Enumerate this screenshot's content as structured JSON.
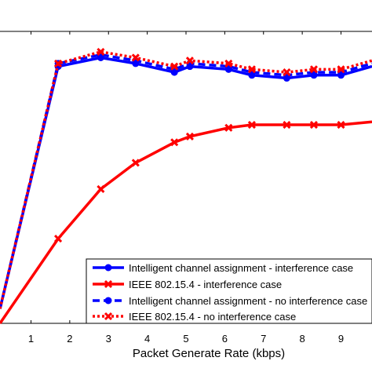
{
  "chart_data": {
    "type": "line",
    "xlabel": "Packet Generate Rate (kbps)",
    "ylabel": "",
    "title": "",
    "xlim": [
      0.2,
      9.8
    ],
    "ylim": [
      0,
      1
    ],
    "xticks": [
      1,
      2,
      3,
      4,
      5,
      6,
      7,
      8,
      9
    ],
    "grid": false,
    "legend_position": "lower-right",
    "x": [
      0.2,
      1.7,
      2.8,
      3.7,
      4.7,
      5.1,
      6.1,
      6.7,
      7.6,
      8.3,
      9.0,
      9.8
    ],
    "series": [
      {
        "name": "Intelligent channel assignment - interference case",
        "color": "#0000ff",
        "line_style": "solid",
        "marker": "circle",
        "values": [
          0.05,
          0.88,
          0.91,
          0.89,
          0.86,
          0.88,
          0.87,
          0.85,
          0.84,
          0.85,
          0.85,
          0.88
        ]
      },
      {
        "name": "IEEE 802.15.4 - interference case",
        "color": "#ff0000",
        "line_style": "solid",
        "marker": "x",
        "values": [
          0.0,
          0.29,
          0.46,
          0.55,
          0.62,
          0.64,
          0.67,
          0.68,
          0.68,
          0.68,
          0.68,
          0.69
        ]
      },
      {
        "name": "Intelligent channel assignment - no interference case",
        "color": "#0000ff",
        "line_style": "dashed",
        "marker": "circle",
        "values": [
          0.05,
          0.89,
          0.92,
          0.9,
          0.87,
          0.89,
          0.88,
          0.86,
          0.85,
          0.86,
          0.86,
          0.89
        ]
      },
      {
        "name": "IEEE 802.15.4 - no interference case",
        "color": "#ff0000",
        "line_style": "dotted",
        "marker": "x",
        "values": [
          0.05,
          0.89,
          0.93,
          0.91,
          0.88,
          0.9,
          0.89,
          0.87,
          0.86,
          0.87,
          0.87,
          0.9
        ]
      }
    ]
  }
}
